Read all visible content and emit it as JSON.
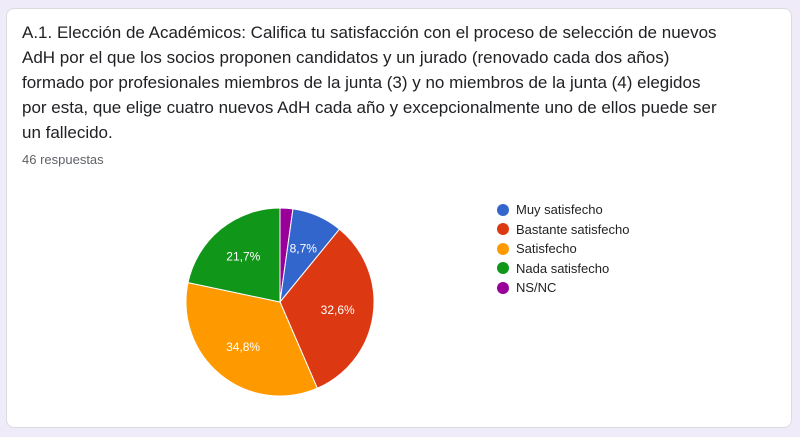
{
  "question": {
    "title": "A.1. Elección de Académicos: Califica tu satisfacción con el proceso de selección de nuevos AdH por el que los socios proponen candidatos y un jurado (renovado cada dos años) formado por profesionales miembros de la junta (3) y no miembros de la junta (4) elegidos por esta, que elige cuatro nuevos AdH cada año y excepcionalmente uno de ellos puede ser un fallecido.",
    "responses": "46 respuestas"
  },
  "chart_data": {
    "type": "pie",
    "title": "",
    "legend_position": "right",
    "start_angle_deg": 90,
    "direction": "clockwise",
    "slices": [
      {
        "name": "NS/NC",
        "value": 2.2,
        "label": "",
        "color": "#990099"
      },
      {
        "name": "Muy satisfecho",
        "value": 8.7,
        "label": "8,7%",
        "color": "#3366cc"
      },
      {
        "name": "Bastante satisfecho",
        "value": 32.6,
        "label": "32,6%",
        "color": "#dc3912"
      },
      {
        "name": "Satisfecho",
        "value": 34.8,
        "label": "34,8%",
        "color": "#ff9900"
      },
      {
        "name": "Nada satisfecho",
        "value": 21.7,
        "label": "21,7%",
        "color": "#109618"
      }
    ],
    "legend": [
      {
        "name": "Muy satisfecho",
        "color": "#3366cc"
      },
      {
        "name": "Bastante satisfecho",
        "color": "#dc3912"
      },
      {
        "name": "Satisfecho",
        "color": "#ff9900"
      },
      {
        "name": "Nada satisfecho",
        "color": "#109618"
      },
      {
        "name": "NS/NC",
        "color": "#990099"
      }
    ]
  }
}
